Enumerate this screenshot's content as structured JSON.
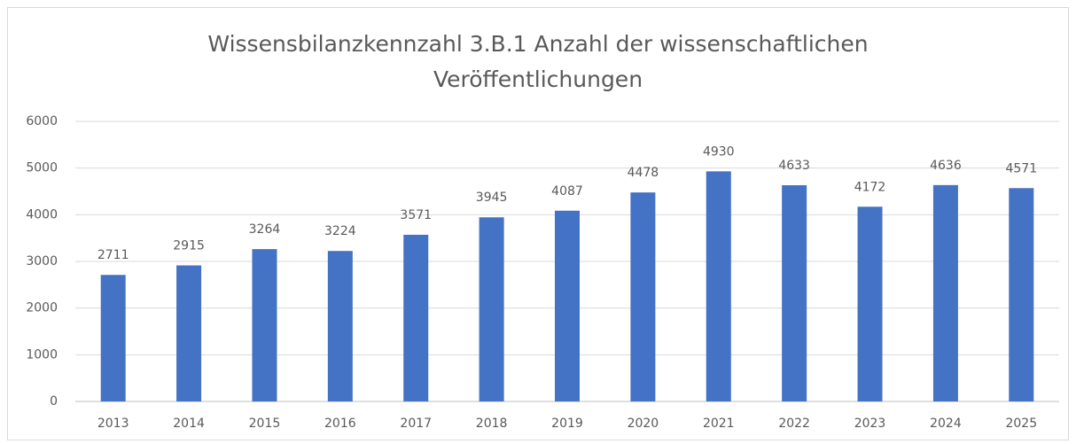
{
  "chart_data": {
    "type": "bar",
    "title": "Wissensbilanzkennzahl 3.B.1 Anzahl der wissenschaftlichen Veröffentlichungen",
    "categories": [
      "2013",
      "2014",
      "2015",
      "2016",
      "2017",
      "2018",
      "2019",
      "2020",
      "2021",
      "2022",
      "2023",
      "2024",
      "2025"
    ],
    "values": [
      2711,
      2915,
      3264,
      3224,
      3571,
      3945,
      4087,
      4478,
      4930,
      4633,
      4172,
      4636,
      4571
    ],
    "color": "#4472c4",
    "ylim": [
      0,
      6000
    ],
    "yticks": [
      0,
      1000,
      2000,
      3000,
      4000,
      5000,
      6000
    ],
    "grid": true
  }
}
